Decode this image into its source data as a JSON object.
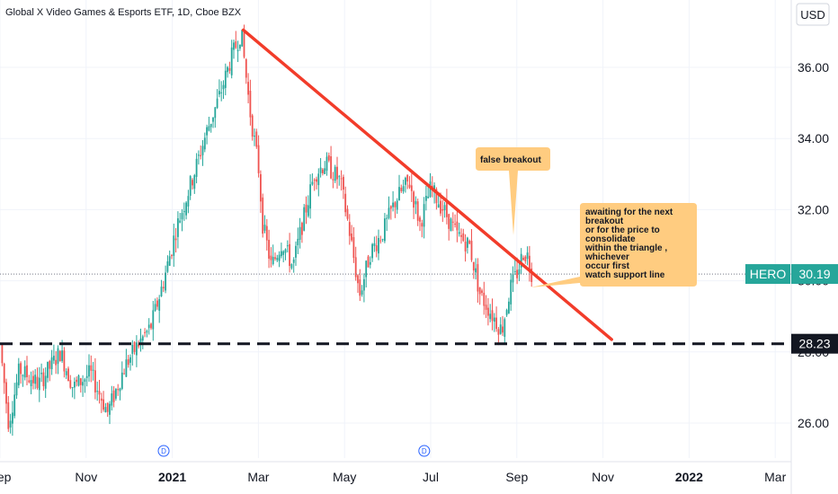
{
  "chart_data": {
    "type": "candlestick",
    "title": "Global X Video Games & Esports ETF, 1D, Cboe BZX",
    "currency": "USD",
    "ylim": [
      25,
      37.3
    ],
    "yticks": [
      "36.00",
      "34.00",
      "32.00",
      "30.00",
      "28.00",
      "26.00"
    ],
    "xticks": [
      {
        "label": "Sep",
        "month": 0,
        "bold": false
      },
      {
        "label": "Nov",
        "month": 2,
        "bold": false
      },
      {
        "label": "2021",
        "month": 4,
        "bold": true
      },
      {
        "label": "Mar",
        "month": 6,
        "bold": false
      },
      {
        "label": "May",
        "month": 8,
        "bold": false
      },
      {
        "label": "Jul",
        "month": 10,
        "bold": false
      },
      {
        "label": "Sep",
        "month": 12,
        "bold": false
      },
      {
        "label": "Nov",
        "month": 14,
        "bold": false
      },
      {
        "label": "2022",
        "month": 16,
        "bold": true
      },
      {
        "label": "Mar",
        "month": 18,
        "bold": false
      }
    ],
    "colors": {
      "up": "#26a69a",
      "down": "#ef5350",
      "trendline": "#f23c2a",
      "callout": "#ffcc80",
      "tag": "#26a69a",
      "grid": "#f0f3fa"
    },
    "grid": true,
    "anchors": [
      {
        "m": 0.0,
        "c": 28.2
      },
      {
        "m": 0.2,
        "c": 26.0
      },
      {
        "m": 0.45,
        "c": 27.5
      },
      {
        "m": 0.9,
        "c": 27.1
      },
      {
        "m": 1.4,
        "c": 28.0
      },
      {
        "m": 1.7,
        "c": 27.0
      },
      {
        "m": 2.1,
        "c": 27.4
      },
      {
        "m": 2.5,
        "c": 26.3
      },
      {
        "m": 2.9,
        "c": 27.6
      },
      {
        "m": 3.2,
        "c": 28.2
      },
      {
        "m": 3.5,
        "c": 28.7
      },
      {
        "m": 3.8,
        "c": 30.0
      },
      {
        "m": 4.1,
        "c": 31.5
      },
      {
        "m": 4.5,
        "c": 33.0
      },
      {
        "m": 4.8,
        "c": 34.2
      },
      {
        "m": 5.1,
        "c": 35.2
      },
      {
        "m": 5.35,
        "c": 36.2
      },
      {
        "m": 5.6,
        "c": 37.0
      },
      {
        "m": 5.8,
        "c": 34.8
      },
      {
        "m": 6.0,
        "c": 33.2
      },
      {
        "m": 6.1,
        "c": 31.6
      },
      {
        "m": 6.3,
        "c": 30.4
      },
      {
        "m": 6.55,
        "c": 31.1
      },
      {
        "m": 6.8,
        "c": 30.4
      },
      {
        "m": 7.0,
        "c": 31.5
      },
      {
        "m": 7.3,
        "c": 33.0
      },
      {
        "m": 7.55,
        "c": 33.3
      },
      {
        "m": 7.9,
        "c": 32.8
      },
      {
        "m": 8.1,
        "c": 31.5
      },
      {
        "m": 8.35,
        "c": 29.6
      },
      {
        "m": 8.6,
        "c": 30.8
      },
      {
        "m": 8.9,
        "c": 31.4
      },
      {
        "m": 9.2,
        "c": 32.3
      },
      {
        "m": 9.5,
        "c": 32.8
      },
      {
        "m": 9.75,
        "c": 31.6
      },
      {
        "m": 10.0,
        "c": 32.6
      },
      {
        "m": 10.3,
        "c": 32.0
      },
      {
        "m": 10.6,
        "c": 31.3
      },
      {
        "m": 10.9,
        "c": 31.0
      },
      {
        "m": 11.15,
        "c": 29.6
      },
      {
        "m": 11.45,
        "c": 29.0
      },
      {
        "m": 11.65,
        "c": 28.6
      },
      {
        "m": 11.85,
        "c": 29.8
      },
      {
        "m": 12.0,
        "c": 30.2
      },
      {
        "m": 12.15,
        "c": 30.8
      },
      {
        "m": 12.25,
        "c": 30.7
      },
      {
        "m": 12.35,
        "c": 30.2
      }
    ],
    "trendline": {
      "from": {
        "m": 5.65,
        "price": 37.05
      },
      "to": {
        "m": 14.2,
        "price": 28.35
      }
    },
    "support_line": {
      "price": 28.23
    },
    "last_price": {
      "symbol": "HERO",
      "value": "30.19",
      "price": 30.19
    },
    "support_label": {
      "value": "28.23",
      "price": 28.23
    },
    "dividend_markers": [
      {
        "label": "D",
        "m": 3.8
      },
      {
        "label": "D",
        "m": 9.85
      }
    ],
    "annotations": [
      {
        "id": "false-breakout",
        "lines": [
          "false breakout"
        ]
      },
      {
        "id": "awaiting",
        "lines": [
          "awaiting for the next",
          "breakout",
          "or for the price to",
          "consolidate",
          "within the triangle ,",
          "whichever",
          "occur first",
          "watch support line"
        ]
      }
    ]
  }
}
